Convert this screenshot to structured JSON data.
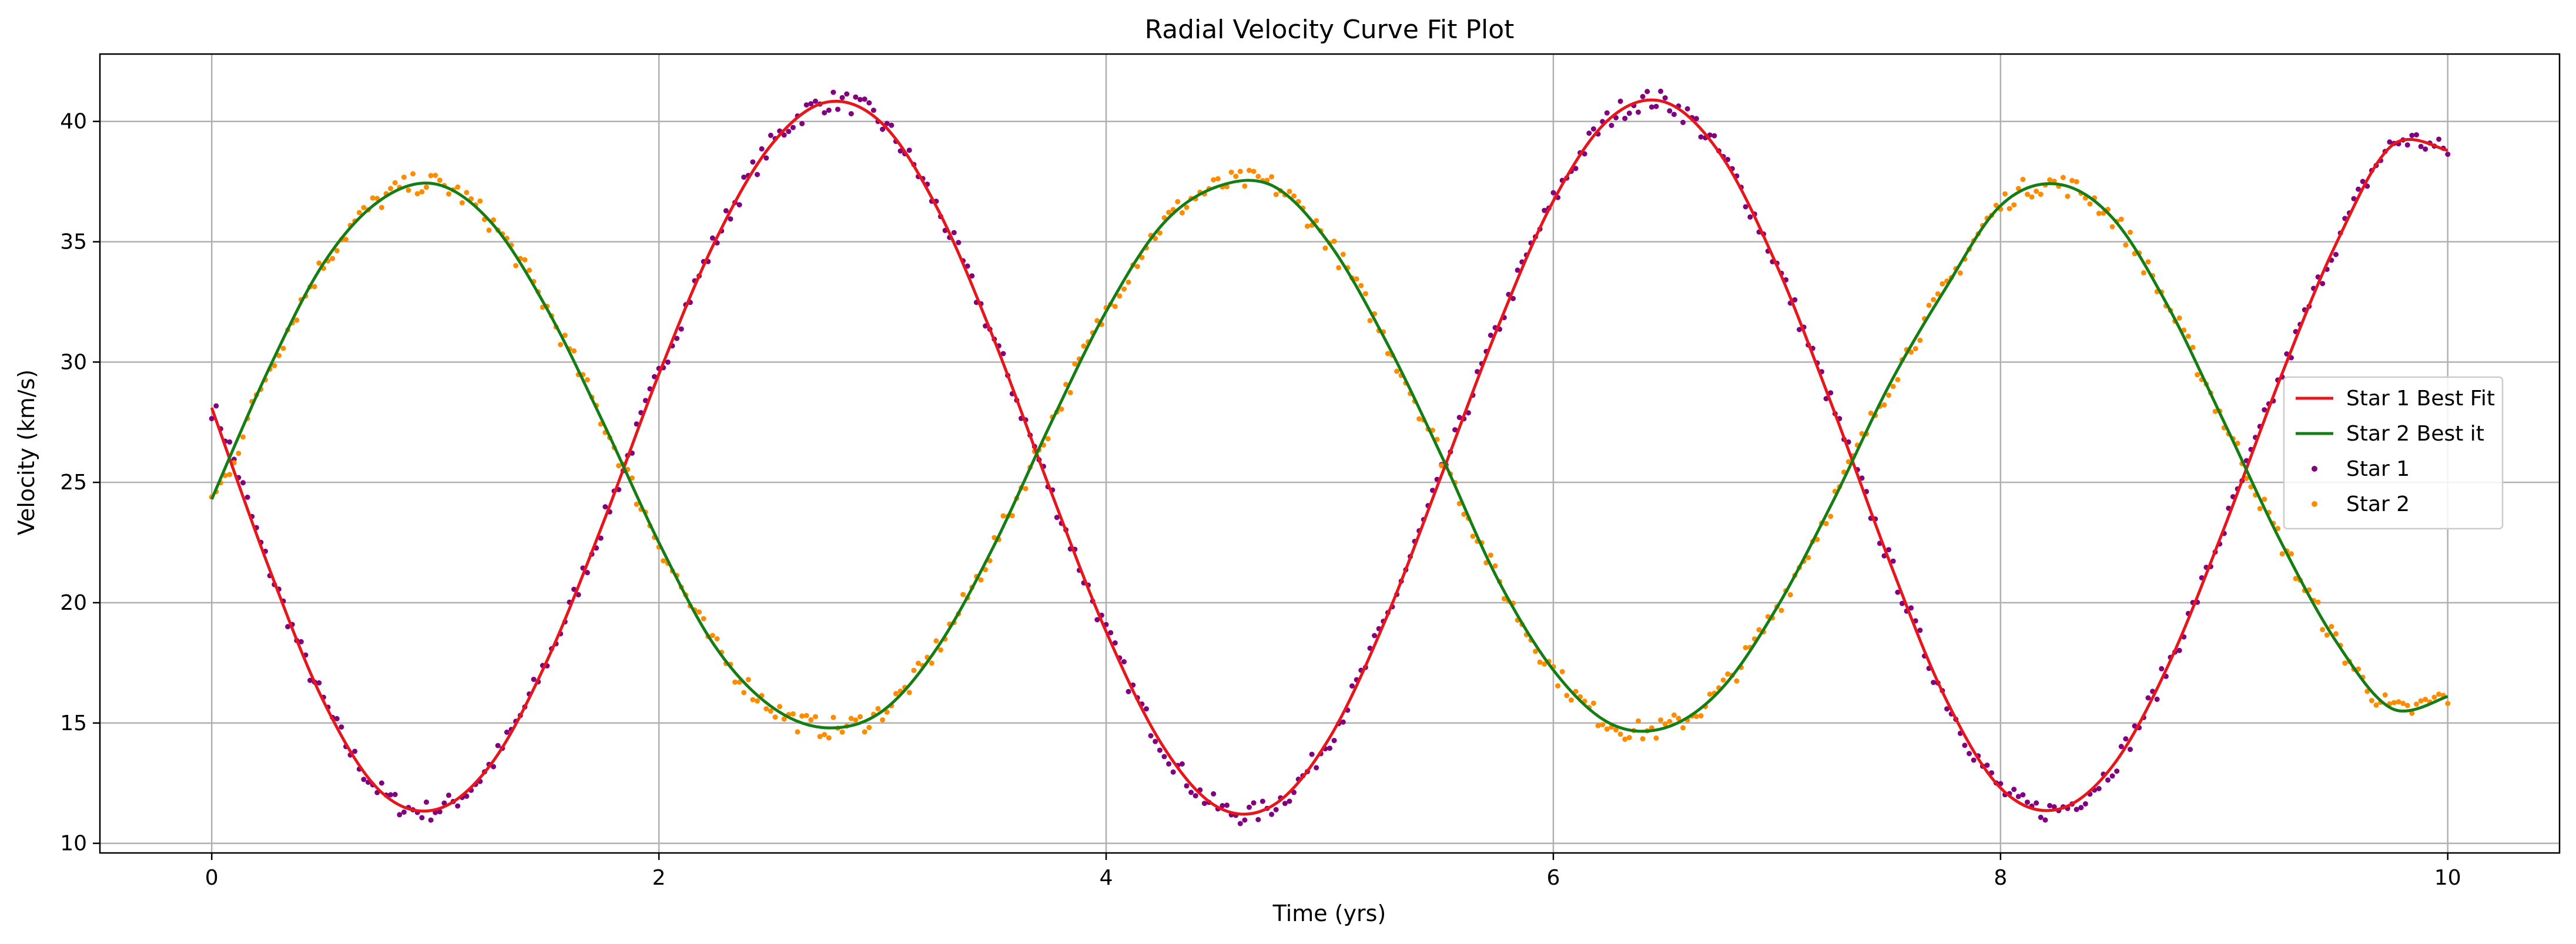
{
  "chart_data": {
    "type": "line",
    "title": "Radial Velocity Curve Fit Plot",
    "xlabel": "Time (yrs)",
    "ylabel": "Velocity (km/s)",
    "xlim": [
      -0.5,
      10.5
    ],
    "ylim": [
      9.6,
      42.8
    ],
    "xticks": [
      0,
      2,
      4,
      6,
      8,
      10
    ],
    "yticks": [
      10,
      15,
      20,
      25,
      30,
      35,
      40
    ],
    "grid": true,
    "legend_position": "center-right",
    "legend": [
      {
        "label": "Star 1 Best Fit",
        "kind": "line",
        "color": "#e8161b"
      },
      {
        "label": "Star 2 Best it",
        "kind": "line",
        "color": "#147d14"
      },
      {
        "label": "Star 1",
        "kind": "marker",
        "color": "#800080"
      },
      {
        "label": "Star 2",
        "kind": "marker",
        "color": "#ff8c00"
      }
    ],
    "series": [
      {
        "name": "Star 1 Best Fit",
        "kind": "line",
        "color": "#e8161b",
        "x": [
          0,
          0.25,
          0.5,
          0.75,
          1.0,
          1.25,
          1.5,
          1.75,
          2.0,
          2.25,
          2.5,
          2.75,
          3.0,
          3.25,
          3.5,
          3.75,
          4.0,
          4.25,
          4.5,
          4.75,
          5.0,
          5.25,
          5.5,
          5.75,
          6.0,
          6.25,
          6.5,
          6.75,
          7.0,
          7.25,
          7.5,
          7.75,
          8.0,
          8.25,
          8.5,
          8.75,
          9.0,
          9.25,
          9.5,
          9.75,
          10.0
        ],
        "y": [
          28.1,
          21.6,
          15.9,
          12.2,
          11.4,
          13.3,
          17.6,
          23.3,
          29.5,
          35.0,
          39.0,
          40.8,
          39.9,
          36.3,
          30.9,
          24.7,
          18.8,
          14.1,
          11.5,
          11.6,
          14.4,
          19.3,
          25.3,
          31.4,
          36.7,
          40.1,
          40.8,
          38.6,
          34.0,
          28.1,
          21.8,
          16.1,
          12.3,
          11.4,
          13.2,
          17.4,
          23.1,
          29.3,
          34.9,
          39.0,
          38.8
        ]
      },
      {
        "name": "Star 2 Best it",
        "kind": "line",
        "color": "#147d14",
        "x": [
          0,
          0.25,
          0.5,
          0.75,
          1.0,
          1.25,
          1.5,
          1.75,
          2.0,
          2.25,
          2.5,
          2.75,
          3.0,
          3.25,
          3.5,
          3.75,
          4.0,
          4.25,
          4.5,
          4.75,
          5.0,
          5.25,
          5.5,
          5.75,
          6.0,
          6.25,
          6.5,
          6.75,
          7.0,
          7.25,
          7.5,
          7.75,
          8.0,
          8.25,
          8.5,
          8.75,
          9.0,
          9.25,
          9.5,
          9.75,
          10.0
        ],
        "y": [
          24.3,
          29.6,
          34.1,
          36.7,
          37.4,
          35.8,
          32.2,
          27.5,
          22.5,
          18.2,
          15.7,
          14.8,
          15.5,
          18.2,
          22.4,
          27.4,
          32.1,
          35.7,
          37.3,
          37.3,
          34.9,
          30.9,
          26.1,
          21.0,
          17.2,
          15.0,
          14.8,
          16.4,
          19.8,
          24.2,
          29.0,
          33.0,
          36.5,
          37.4,
          36.0,
          32.3,
          27.5,
          22.6,
          18.4,
          15.6,
          16.1
        ]
      }
    ]
  }
}
